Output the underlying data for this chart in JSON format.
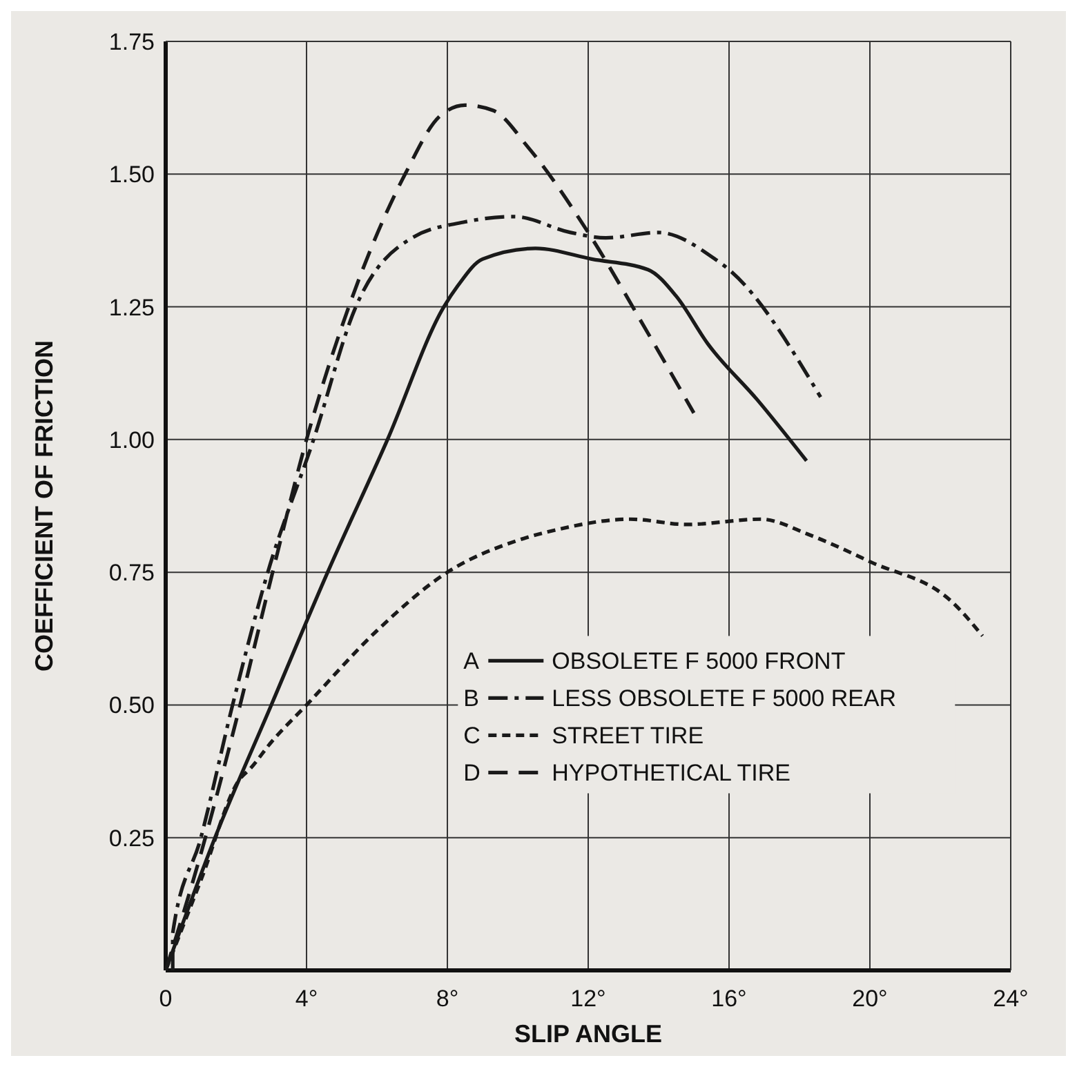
{
  "chart_data": {
    "type": "line",
    "xlabel": "SLIP ANGLE",
    "ylabel": "COEFFICIENT OF FRICTION",
    "xlim": [
      0,
      24
    ],
    "ylim": [
      0,
      1.75
    ],
    "xticks": [
      {
        "value": 0,
        "label": "0"
      },
      {
        "value": 4,
        "label": "4°"
      },
      {
        "value": 8,
        "label": "8°"
      },
      {
        "value": 12,
        "label": "12°"
      },
      {
        "value": 16,
        "label": "16°"
      },
      {
        "value": 20,
        "label": "20°"
      },
      {
        "value": 24,
        "label": "24°"
      }
    ],
    "yticks": [
      {
        "value": 0,
        "label": null
      },
      {
        "value": 0.25,
        "label": "0.25"
      },
      {
        "value": 0.5,
        "label": "0.50"
      },
      {
        "value": 0.75,
        "label": "0.75"
      },
      {
        "value": 1,
        "label": "1.00"
      },
      {
        "value": 1.25,
        "label": "1.25"
      },
      {
        "value": 1.5,
        "label": "1.50"
      },
      {
        "value": 1.75,
        "label": "1.75"
      }
    ],
    "annotations": [
      "A",
      "B",
      "C",
      "D"
    ],
    "grid": true,
    "legend": "bottom right",
    "marker": "none",
    "series": [
      {
        "name": "OBSOLETE F 5000 FRONT",
        "color": "#1a1a1a",
        "line_style": "solid",
        "x": [
          0,
          1.4,
          3.0,
          4.6,
          6.3,
          7.9,
          8.3,
          9.0,
          10.5,
          12.1,
          13.7,
          14.5,
          15.4,
          16.8,
          18.2
        ],
        "values": [
          0,
          0.25,
          0.5,
          0.75,
          1.0,
          1.25,
          1.29,
          1.34,
          1.36,
          1.34,
          1.32,
          1.27,
          1.18,
          1.075,
          0.96
        ]
      },
      {
        "name": "LESS OBSOLETE F 5000 REAR",
        "color": "#1a1a1a",
        "line_style": "dashdot",
        "x": [
          0.2,
          0.2,
          1.0,
          1.9,
          2.9,
          4.2,
          5.4,
          7.0,
          8.5,
          9.9,
          11.5,
          12.5,
          14.0,
          15.6,
          16.0,
          18.6
        ],
        "values": [
          0,
          0.07,
          0.25,
          0.5,
          0.75,
          1.0,
          1.25,
          1.38,
          1.41,
          1.42,
          1.39,
          1.38,
          1.39,
          1.34,
          1.32,
          1.08
        ]
      },
      {
        "name": "STREET TIRE",
        "color": "#1a1a1a",
        "line_style": "dotted",
        "x": [
          0,
          1.0,
          2.1,
          2.4,
          3.0,
          4.0,
          6.0,
          8.0,
          10.0,
          11.1,
          13.2,
          14.8,
          16.9,
          18.3,
          20.0,
          22.4,
          23.2
        ],
        "values": [
          0,
          0.17,
          0.36,
          0.38,
          0.43,
          0.5,
          0.64,
          0.75,
          0.81,
          0.83,
          0.85,
          0.84,
          0.85,
          0.82,
          0.77,
          0.69,
          0.63
        ]
      },
      {
        "name": "HYPOTHETICAL TIRE",
        "color": "#1a1a1a",
        "line_style": "dashed",
        "x": [
          0,
          1.0,
          2.0,
          3.0,
          4.0,
          5.2,
          6.8,
          7.8,
          8.5,
          9.3,
          10.3,
          12.0,
          13.7,
          15.0
        ],
        "values": [
          0,
          0.22,
          0.47,
          0.74,
          1.0,
          1.25,
          1.5,
          1.61,
          1.63,
          1.62,
          1.55,
          1.39,
          1.2,
          1.05
        ]
      }
    ]
  }
}
